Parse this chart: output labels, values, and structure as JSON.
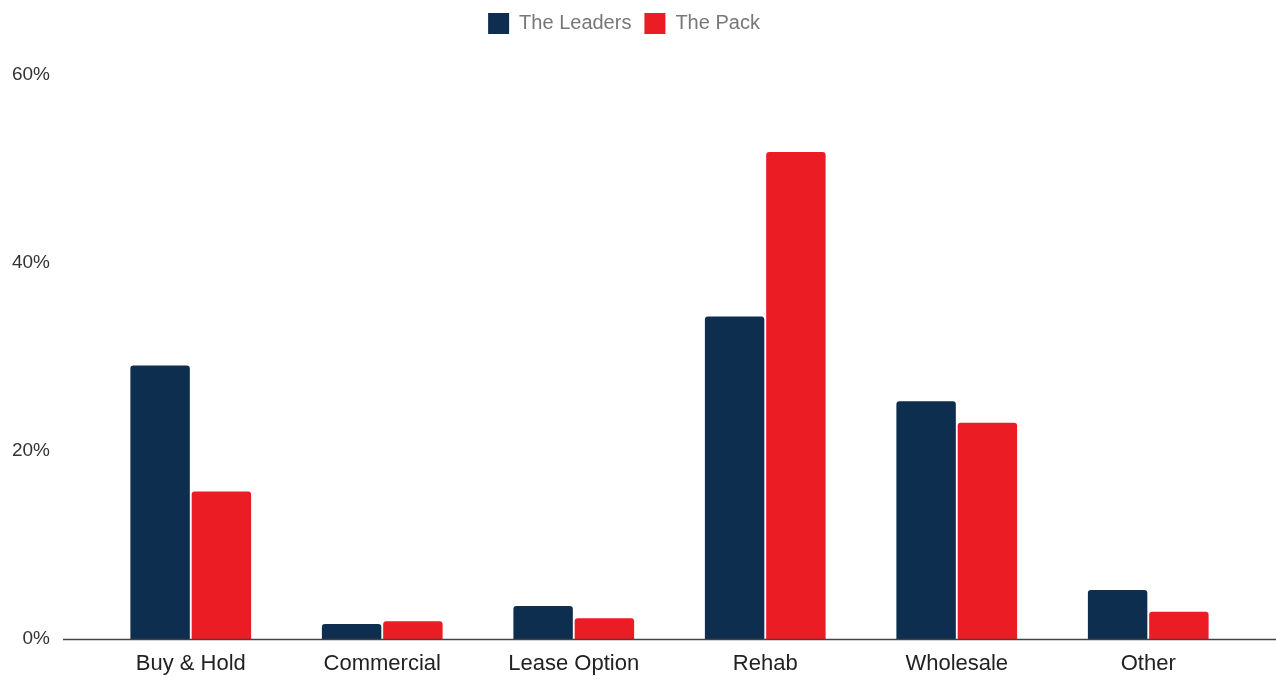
{
  "chart_data": {
    "type": "bar",
    "categories": [
      "Buy & Hold",
      "Commercial",
      "Lease Option",
      "Rehab",
      "Wholesale",
      "Other"
    ],
    "series": [
      {
        "name": "The Leaders",
        "color": "#0d2e4f",
        "values": [
          29.1,
          1.6,
          3.5,
          34.3,
          25.3,
          5.2
        ]
      },
      {
        "name": "The Pack",
        "color": "#ec1c24",
        "values": [
          15.7,
          1.9,
          2.2,
          51.8,
          23.0,
          2.9
        ]
      }
    ],
    "ylim": [
      0,
      60
    ],
    "yticks": [
      {
        "value": 0,
        "label": "0%"
      },
      {
        "value": 20,
        "label": "20%"
      },
      {
        "value": 40,
        "label": "40%"
      },
      {
        "value": 60,
        "label": "60%"
      }
    ],
    "legend": "top"
  }
}
